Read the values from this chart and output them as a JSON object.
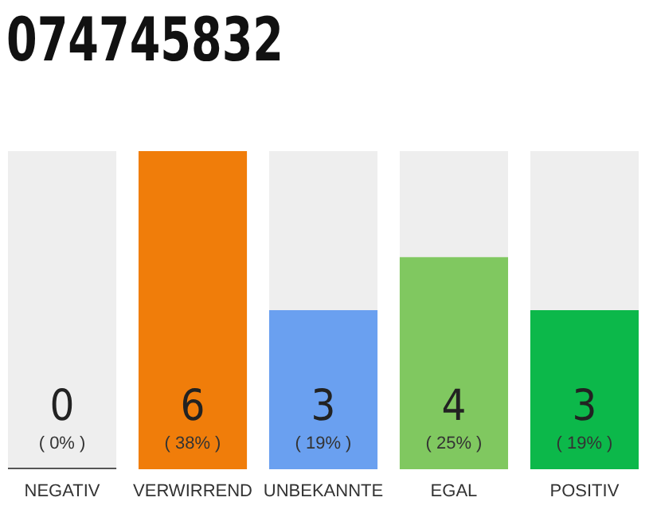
{
  "chart_data": {
    "type": "bar",
    "title": "074745832",
    "categories": [
      "NEGATIV",
      "VERWIRREND",
      "UNBEKANNTE",
      "EGAL",
      "POSITIV"
    ],
    "values": [
      0,
      6,
      3,
      4,
      3
    ],
    "colors": [
      "#555555",
      "#f07d0a",
      "#6aa0f0",
      "#80c860",
      "#0cb84a"
    ],
    "data_labels": true,
    "annotations": [
      "( 0% )",
      "( 38% )",
      "( 19% )",
      "( 25% )",
      "( 19% )"
    ]
  }
}
